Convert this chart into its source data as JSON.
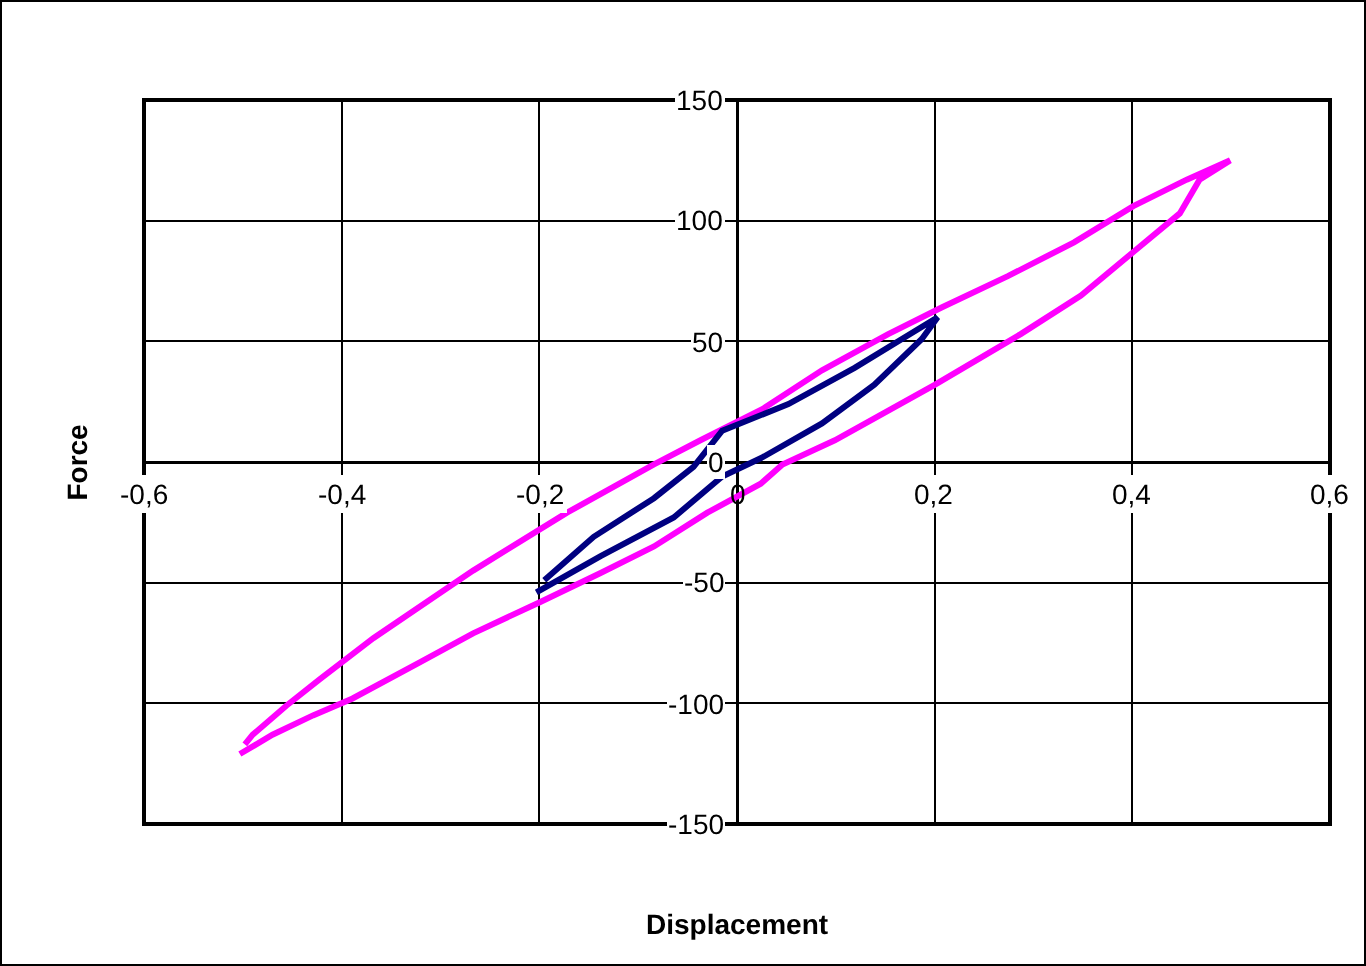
{
  "chart_data": {
    "type": "line",
    "xlabel": "Displacement",
    "ylabel": "Force",
    "xlim": [
      -0.6,
      0.6
    ],
    "xticks": [
      {
        "value": -0.6,
        "label": "-0,6"
      },
      {
        "value": -0.4,
        "label": "-0,4"
      },
      {
        "value": -0.2,
        "label": "-0,2"
      },
      0,
      {
        "value": 0.2,
        "label": "0,2"
      },
      {
        "value": 0.4,
        "label": "0,4"
      },
      {
        "value": 0.6,
        "label": "0,6"
      }
    ],
    "ylim": [
      -150,
      150
    ],
    "yticks": [
      -150,
      -100,
      -50,
      0,
      50,
      100,
      150
    ],
    "grid": true,
    "marker": "none",
    "line_style": "solid",
    "series": [
      {
        "color": "#ff00ff",
        "x": [
          -0.503,
          -0.47,
          -0.429,
          -0.389,
          -0.321,
          -0.267,
          -0.199,
          -0.138,
          -0.084,
          -0.03,
          0.024,
          0.046,
          0.099,
          0.2,
          0.287,
          0.348,
          0.401,
          0.448,
          0.468,
          0.499,
          0.455,
          0.401,
          0.341,
          0.274,
          0.207,
          0.153,
          0.086,
          0.026,
          -0.037,
          -0.084,
          -0.172,
          -0.267,
          -0.314,
          -0.368,
          -0.422,
          -0.456,
          -0.49,
          -0.498
        ],
        "values": [
          -121,
          -113,
          -105,
          -98,
          -83,
          -71,
          -58,
          -46,
          -35,
          -21,
          -9,
          -1,
          9,
          32,
          53,
          69,
          87,
          103,
          117,
          125,
          117,
          106,
          91,
          77,
          64,
          53,
          38,
          22,
          9,
          -1,
          -21,
          -45,
          -58,
          -73,
          -90,
          -101,
          -113,
          -117
        ]
      },
      {
        "color": "#000080",
        "x": [
          -0.203,
          -0.138,
          -0.064,
          -0.015,
          0.026,
          0.086,
          0.139,
          0.187,
          0.203,
          0.119,
          0.052,
          -0.015,
          -0.044,
          -0.084,
          -0.145,
          -0.195
        ],
        "values": [
          -54,
          -39,
          -23,
          -6,
          2,
          16,
          32,
          51,
          60,
          39,
          24,
          13,
          -2,
          -15,
          -31,
          -49
        ]
      }
    ]
  }
}
